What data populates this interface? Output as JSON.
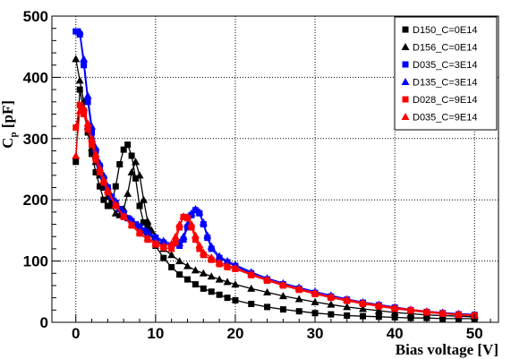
{
  "chart_data": {
    "type": "scatter",
    "title": "",
    "xlabel": "Bias voltage [V]",
    "ylabel": {
      "main": "C",
      "sub": "p",
      "unit": " [pF]"
    },
    "xlim": [
      -3,
      53
    ],
    "ylim": [
      0,
      500
    ],
    "x_ticks": [
      0,
      10,
      20,
      30,
      40,
      50
    ],
    "y_ticks": [
      0,
      100,
      200,
      300,
      400,
      500
    ],
    "grid": true,
    "legend_position": "top-right",
    "series": [
      {
        "name": "D150_C=0E14",
        "color": "#000000",
        "marker": "square",
        "points": [
          [
            0,
            262
          ],
          [
            0.5,
            380
          ],
          [
            1,
            345
          ],
          [
            1.5,
            310
          ],
          [
            2,
            275
          ],
          [
            2.5,
            245
          ],
          [
            3,
            222
          ],
          [
            3.5,
            200
          ],
          [
            4,
            190
          ],
          [
            4.5,
            195
          ],
          [
            5,
            222
          ],
          [
            5.5,
            258
          ],
          [
            6,
            282
          ],
          [
            6.5,
            290
          ],
          [
            7,
            272
          ],
          [
            7.5,
            235
          ],
          [
            8,
            190
          ],
          [
            8.5,
            163
          ],
          [
            9,
            155
          ],
          [
            10,
            125
          ],
          [
            11,
            105
          ],
          [
            12,
            90
          ],
          [
            13,
            78
          ],
          [
            14,
            70
          ],
          [
            15,
            62
          ],
          [
            16,
            55
          ],
          [
            17,
            50
          ],
          [
            18,
            45
          ],
          [
            19,
            40
          ],
          [
            20,
            36
          ],
          [
            22,
            30
          ],
          [
            24,
            25
          ],
          [
            26,
            21
          ],
          [
            28,
            18
          ],
          [
            30,
            15
          ],
          [
            32,
            13
          ],
          [
            34,
            11
          ],
          [
            36,
            10
          ],
          [
            38,
            9
          ],
          [
            40,
            8
          ],
          [
            42,
            7
          ],
          [
            44,
            7
          ],
          [
            46,
            6
          ],
          [
            48,
            6
          ],
          [
            50,
            6
          ]
        ]
      },
      {
        "name": "D156_C=0E14",
        "color": "#000000",
        "marker": "triangle",
        "points": [
          [
            0,
            430
          ],
          [
            0.5,
            395
          ],
          [
            1,
            360
          ],
          [
            1.5,
            320
          ],
          [
            2,
            285
          ],
          [
            2.5,
            262
          ],
          [
            3,
            240
          ],
          [
            3.5,
            220
          ],
          [
            4,
            205
          ],
          [
            4.5,
            190
          ],
          [
            5,
            178
          ],
          [
            5.5,
            175
          ],
          [
            6,
            185
          ],
          [
            6.5,
            210
          ],
          [
            7,
            245
          ],
          [
            7.5,
            262
          ],
          [
            8,
            240
          ],
          [
            8.5,
            200
          ],
          [
            9,
            165
          ],
          [
            9.5,
            150
          ],
          [
            10,
            140
          ],
          [
            11,
            120
          ],
          [
            12,
            110
          ],
          [
            13,
            100
          ],
          [
            14,
            92
          ],
          [
            15,
            85
          ],
          [
            16,
            80
          ],
          [
            17,
            75
          ],
          [
            18,
            70
          ],
          [
            19,
            66
          ],
          [
            20,
            62
          ],
          [
            22,
            55
          ],
          [
            24,
            49
          ],
          [
            26,
            43
          ],
          [
            28,
            38
          ],
          [
            30,
            33
          ],
          [
            32,
            29
          ],
          [
            34,
            25
          ],
          [
            36,
            22
          ],
          [
            38,
            19
          ],
          [
            40,
            16
          ],
          [
            42,
            14
          ],
          [
            44,
            12
          ],
          [
            46,
            11
          ],
          [
            48,
            10
          ],
          [
            50,
            9
          ]
        ]
      },
      {
        "name": "D035_C=3E14",
        "color": "#0000ff",
        "marker": "square",
        "points": [
          [
            0,
            475
          ],
          [
            0.5,
            470
          ],
          [
            1,
            420
          ],
          [
            1.5,
            360
          ],
          [
            2,
            310
          ],
          [
            2.5,
            280
          ],
          [
            3,
            255
          ],
          [
            3.5,
            235
          ],
          [
            4,
            220
          ],
          [
            4.5,
            205
          ],
          [
            5,
            195
          ],
          [
            5.5,
            185
          ],
          [
            6,
            178
          ],
          [
            6.5,
            170
          ],
          [
            7,
            165
          ],
          [
            7.5,
            160
          ],
          [
            8,
            155
          ],
          [
            8.5,
            150
          ],
          [
            9,
            145
          ],
          [
            10,
            138
          ],
          [
            11,
            130
          ],
          [
            12,
            125
          ],
          [
            13,
            125
          ],
          [
            13.5,
            135
          ],
          [
            14,
            155
          ],
          [
            14.5,
            175
          ],
          [
            15,
            183
          ],
          [
            15.5,
            178
          ],
          [
            16,
            160
          ],
          [
            16.5,
            138
          ],
          [
            17,
            120
          ],
          [
            18,
            105
          ],
          [
            19,
            98
          ],
          [
            20,
            92
          ],
          [
            22,
            80
          ],
          [
            24,
            70
          ],
          [
            26,
            62
          ],
          [
            28,
            55
          ],
          [
            30,
            48
          ],
          [
            32,
            42
          ],
          [
            34,
            37
          ],
          [
            36,
            32
          ],
          [
            38,
            28
          ],
          [
            40,
            24
          ],
          [
            42,
            20
          ],
          [
            44,
            17
          ],
          [
            46,
            15
          ],
          [
            48,
            13
          ],
          [
            50,
            12
          ]
        ]
      },
      {
        "name": "D135_C=3E14",
        "color": "#0000ff",
        "marker": "triangle",
        "points": [
          [
            0.5,
            475
          ],
          [
            1,
            430
          ],
          [
            1.5,
            370
          ],
          [
            2,
            320
          ],
          [
            2.5,
            285
          ],
          [
            3,
            260
          ],
          [
            3.5,
            240
          ],
          [
            4,
            222
          ],
          [
            5,
            198
          ],
          [
            6,
            180
          ],
          [
            7,
            168
          ],
          [
            8,
            157
          ],
          [
            9,
            148
          ],
          [
            10,
            140
          ],
          [
            11,
            133
          ],
          [
            12,
            128
          ],
          [
            13,
            130
          ],
          [
            13.5,
            140
          ],
          [
            14,
            160
          ],
          [
            14.5,
            178
          ],
          [
            15,
            185
          ],
          [
            15.5,
            180
          ],
          [
            16,
            163
          ],
          [
            16.5,
            142
          ],
          [
            17,
            124
          ],
          [
            18,
            108
          ],
          [
            19,
            100
          ],
          [
            20,
            94
          ],
          [
            22,
            82
          ],
          [
            24,
            72
          ],
          [
            26,
            64
          ],
          [
            28,
            57
          ],
          [
            30,
            50
          ],
          [
            32,
            44
          ],
          [
            34,
            38
          ],
          [
            36,
            33
          ],
          [
            38,
            29
          ],
          [
            40,
            25
          ],
          [
            42,
            21
          ],
          [
            44,
            18
          ],
          [
            46,
            16
          ],
          [
            48,
            14
          ],
          [
            50,
            13
          ]
        ]
      },
      {
        "name": "D028_C=9E14",
        "color": "#ff0000",
        "marker": "square",
        "points": [
          [
            0,
            318
          ],
          [
            0.5,
            355
          ],
          [
            1,
            340
          ],
          [
            1.5,
            315
          ],
          [
            2,
            290
          ],
          [
            2.5,
            265
          ],
          [
            3,
            245
          ],
          [
            3.5,
            228
          ],
          [
            4,
            212
          ],
          [
            5,
            190
          ],
          [
            6,
            172
          ],
          [
            7,
            158
          ],
          [
            8,
            145
          ],
          [
            9,
            135
          ],
          [
            10,
            127
          ],
          [
            11,
            122
          ],
          [
            12,
            120
          ],
          [
            12.5,
            130
          ],
          [
            13,
            155
          ],
          [
            13.5,
            172
          ],
          [
            14,
            170
          ],
          [
            14.5,
            155
          ],
          [
            15,
            135
          ],
          [
            15.5,
            120
          ],
          [
            16,
            110
          ],
          [
            17,
            102
          ],
          [
            18,
            95
          ],
          [
            19,
            90
          ],
          [
            20,
            87
          ],
          [
            22,
            77
          ],
          [
            24,
            68
          ],
          [
            26,
            60
          ],
          [
            28,
            53
          ],
          [
            30,
            46
          ],
          [
            32,
            40
          ],
          [
            34,
            35
          ],
          [
            36,
            30
          ],
          [
            38,
            26
          ],
          [
            40,
            22
          ],
          [
            42,
            19
          ],
          [
            44,
            16
          ],
          [
            46,
            14
          ],
          [
            48,
            12
          ],
          [
            50,
            11
          ]
        ]
      },
      {
        "name": "D035_C=9E14",
        "color": "#ff0000",
        "marker": "triangle",
        "points": [
          [
            0,
            272
          ],
          [
            0.5,
            345
          ],
          [
            1,
            350
          ],
          [
            1.5,
            325
          ],
          [
            2,
            300
          ],
          [
            2.5,
            275
          ],
          [
            3,
            252
          ],
          [
            3.5,
            232
          ],
          [
            4,
            216
          ],
          [
            5,
            192
          ],
          [
            6,
            174
          ],
          [
            7,
            160
          ],
          [
            8,
            148
          ],
          [
            9,
            138
          ],
          [
            10,
            130
          ],
          [
            11,
            125
          ],
          [
            12,
            128
          ],
          [
            12.5,
            140
          ],
          [
            13,
            160
          ],
          [
            13.5,
            173
          ],
          [
            14,
            172
          ],
          [
            14.5,
            160
          ],
          [
            15,
            142
          ],
          [
            15.5,
            126
          ],
          [
            16,
            114
          ],
          [
            17,
            106
          ],
          [
            18,
            98
          ],
          [
            19,
            93
          ],
          [
            20,
            89
          ],
          [
            22,
            79
          ],
          [
            24,
            70
          ],
          [
            26,
            62
          ],
          [
            28,
            55
          ],
          [
            30,
            48
          ],
          [
            32,
            42
          ],
          [
            34,
            37
          ],
          [
            36,
            32
          ],
          [
            38,
            28
          ],
          [
            40,
            24
          ],
          [
            42,
            21
          ],
          [
            44,
            18
          ],
          [
            46,
            15
          ],
          [
            48,
            13
          ],
          [
            50,
            12
          ]
        ]
      }
    ]
  }
}
